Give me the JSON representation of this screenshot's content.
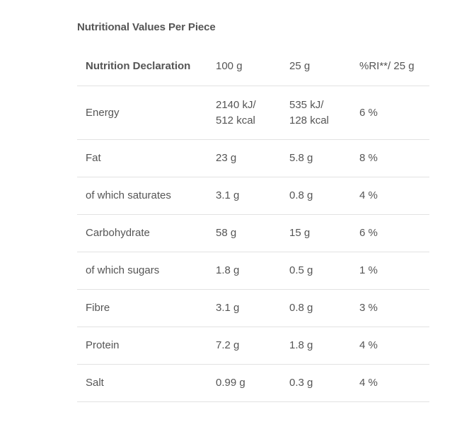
{
  "title": "Nutritional Values Per Piece",
  "table": {
    "headers": [
      "Nutrition Declaration",
      "100 g",
      "25 g",
      "%RI**/  25 g"
    ],
    "rows": [
      [
        "Energy",
        "2140 kJ/\n512 kcal",
        "535 kJ/\n128 kcal",
        "6 %"
      ],
      [
        "Fat",
        "23 g",
        "5.8 g",
        "8 %"
      ],
      [
        "of which saturates",
        "3.1 g",
        "0.8 g",
        "4 %"
      ],
      [
        "Carbohydrate",
        "58 g",
        "15 g",
        "6 %"
      ],
      [
        "of which sugars",
        "1.8 g",
        "0.5 g",
        "1 %"
      ],
      [
        "Fibre",
        "3.1 g",
        "0.8 g",
        "3 %"
      ],
      [
        "Protein",
        "7.2 g",
        "1.8 g",
        "4 %"
      ],
      [
        "Salt",
        "0.99  g",
        "0.3 g",
        "4 %"
      ]
    ]
  }
}
